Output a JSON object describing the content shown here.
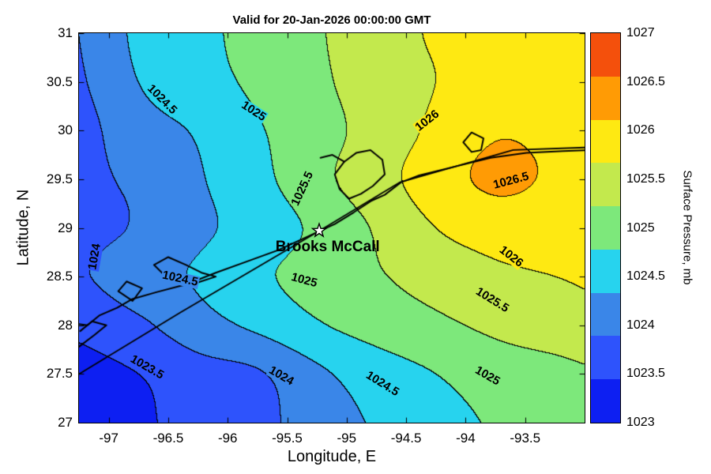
{
  "title": "Valid for 20-Jan-2026 00:00:00 GMT",
  "axes": {
    "xlabel": "Longitude, E",
    "ylabel": "Latitude, N",
    "lon_min": -97.25,
    "lon_max": -93.0,
    "lat_min": 27.0,
    "lat_max": 31.0,
    "x_ticks": [
      -97,
      -96.5,
      -96,
      -95.5,
      -95,
      -94.5,
      -94,
      -93.5
    ],
    "x_tick_labels": [
      "-97",
      "-96.5",
      "-96",
      "-95.5",
      "-95",
      "-94.5",
      "-94",
      "-93.5"
    ],
    "y_ticks": [
      27,
      27.5,
      28,
      28.5,
      29,
      29.5,
      30,
      30.5,
      31
    ],
    "y_tick_labels": [
      "27",
      "27.5",
      "28",
      "28.5",
      "29",
      "29.5",
      "30",
      "30.5",
      "31"
    ]
  },
  "colorbar": {
    "title": "Surface Pressure, mb",
    "tick_labels_top_to_bottom": [
      "1027",
      "1026.5",
      "1026",
      "1025.5",
      "1025",
      "1024.5",
      "1024",
      "1023.5",
      "1023"
    ],
    "segment_colors_bottom_to_top": [
      "#0d1ff2",
      "#2e53fc",
      "#3a86e8",
      "#27d3ee",
      "#7de87b",
      "#c3e94d",
      "#fee912",
      "#ff9b05",
      "#f4500c"
    ]
  },
  "chart_data": {
    "type": "filled-contour",
    "variable": "Surface Pressure",
    "units": "mb",
    "level_min": 1023,
    "level_step": 0.5,
    "levels": [
      1023.5,
      1024,
      1024.5,
      1025,
      1025.5,
      1026,
      1026.5
    ],
    "band_colors": [
      "#0d1ff2",
      "#2e53fc",
      "#3a86e8",
      "#27d3ee",
      "#7de87b",
      "#c3e94d",
      "#fee912",
      "#ff9b05"
    ],
    "grid": {
      "lons": [
        -97.25,
        -96.75,
        -96.25,
        -95.75,
        -95.25,
        -94.75,
        -94.25,
        -93.75,
        -93.25,
        -92.75
      ],
      "lats": [
        27.0,
        27.5,
        28.0,
        28.5,
        29.0,
        29.5,
        30.0,
        30.5,
        31.0
      ],
      "pressure": [
        [
          1023.15,
          1023.4,
          1023.7,
          1023.85,
          1024.25,
          1024.55,
          1024.8,
          1025.05,
          1025.15,
          1025.25
        ],
        [
          1023.35,
          1023.5,
          1023.8,
          1023.95,
          1024.4,
          1024.75,
          1025.0,
          1025.25,
          1025.35,
          1025.5
        ],
        [
          1023.6,
          1023.9,
          1024.3,
          1024.6,
          1024.95,
          1025.2,
          1025.4,
          1025.6,
          1025.75,
          1025.9
        ],
        [
          1023.95,
          1024.3,
          1024.55,
          1024.9,
          1025.2,
          1025.45,
          1025.7,
          1025.9,
          1026.0,
          1026.1
        ],
        [
          1023.85,
          1024.05,
          1024.4,
          1024.7,
          1025.1,
          1025.55,
          1026.0,
          1026.2,
          1026.25,
          1026.35
        ],
        [
          1023.9,
          1024.1,
          1024.45,
          1024.85,
          1025.35,
          1025.8,
          1026.25,
          1026.6,
          1026.45,
          1026.5
        ],
        [
          1023.85,
          1024.3,
          1024.55,
          1024.95,
          1025.3,
          1025.7,
          1026.1,
          1026.45,
          1026.4,
          1026.4
        ],
        [
          1023.95,
          1024.5,
          1024.8,
          1025.1,
          1025.4,
          1025.75,
          1026.0,
          1026.25,
          1026.3,
          1026.3
        ],
        [
          1024.0,
          1024.6,
          1024.85,
          1025.2,
          1025.45,
          1025.8,
          1026.05,
          1026.25,
          1026.3,
          1026.3
        ]
      ]
    },
    "contour_labels": [
      {
        "text": "1024.5",
        "lon": -96.55,
        "lat": 30.32,
        "rot": 45
      },
      {
        "text": "1025",
        "lon": -95.78,
        "lat": 30.2,
        "rot": 33
      },
      {
        "text": "1026",
        "lon": -94.32,
        "lat": 30.1,
        "rot": -38
      },
      {
        "text": "1026.5",
        "lon": -93.62,
        "lat": 29.48,
        "rot": -15
      },
      {
        "text": "1025.5",
        "lon": -95.37,
        "lat": 29.4,
        "rot": -65
      },
      {
        "text": "1024",
        "lon": -97.12,
        "lat": 28.7,
        "rot": -80
      },
      {
        "text": "1024.5",
        "lon": -96.4,
        "lat": 28.48,
        "rot": 12
      },
      {
        "text": "1025",
        "lon": -95.36,
        "lat": 28.46,
        "rot": 15
      },
      {
        "text": "1026",
        "lon": -93.62,
        "lat": 28.7,
        "rot": 38
      },
      {
        "text": "1025.5",
        "lon": -93.78,
        "lat": 28.26,
        "rot": 32
      },
      {
        "text": "1023.5",
        "lon": -96.68,
        "lat": 27.57,
        "rot": 30
      },
      {
        "text": "1024",
        "lon": -95.55,
        "lat": 27.48,
        "rot": 30
      },
      {
        "text": "1024.5",
        "lon": -94.7,
        "lat": 27.4,
        "rot": 32
      },
      {
        "text": "1025",
        "lon": -93.82,
        "lat": 27.48,
        "rot": 30
      }
    ],
    "station": {
      "name": "Brooks McCall",
      "lon": -95.23,
      "lat": 28.97,
      "label_lon": -95.16,
      "label_lat": 28.8,
      "marker": "star"
    },
    "coastlines": [
      [
        [
          -97.45,
          27.85
        ],
        [
          -97.32,
          27.92
        ],
        [
          -97.3,
          28.02
        ],
        [
          -97.18,
          28.0
        ],
        [
          -97.08,
          28.1
        ],
        [
          -96.93,
          28.18
        ],
        [
          -96.8,
          28.27
        ],
        [
          -96.6,
          28.34
        ],
        [
          -96.35,
          28.42
        ],
        [
          -96.1,
          28.54
        ],
        [
          -95.85,
          28.65
        ],
        [
          -95.58,
          28.77
        ],
        [
          -95.33,
          28.91
        ],
        [
          -95.1,
          29.04
        ],
        [
          -94.94,
          29.16
        ],
        [
          -94.79,
          29.28
        ],
        [
          -94.68,
          29.34
        ],
        [
          -94.54,
          29.47
        ],
        [
          -94.39,
          29.54
        ],
        [
          -94.09,
          29.63
        ],
        [
          -93.79,
          29.72
        ],
        [
          -93.49,
          29.77
        ],
        [
          -93.18,
          29.79
        ],
        [
          -92.9,
          29.8
        ]
      ],
      [
        [
          -94.98,
          29.3
        ],
        [
          -95.06,
          29.4
        ],
        [
          -95.1,
          29.55
        ],
        [
          -95.02,
          29.68
        ],
        [
          -94.92,
          29.77
        ],
        [
          -94.8,
          29.8
        ],
        [
          -94.7,
          29.7
        ],
        [
          -94.68,
          29.55
        ],
        [
          -94.78,
          29.43
        ],
        [
          -94.88,
          29.35
        ],
        [
          -94.98,
          29.3
        ]
      ],
      [
        [
          -95.02,
          29.68
        ],
        [
          -95.12,
          29.75
        ],
        [
          -95.22,
          29.72
        ]
      ],
      [
        [
          -96.4,
          28.42
        ],
        [
          -96.52,
          28.5
        ],
        [
          -96.62,
          28.62
        ],
        [
          -96.5,
          28.7
        ],
        [
          -96.35,
          28.62
        ],
        [
          -96.22,
          28.54
        ],
        [
          -96.1,
          28.5
        ],
        [
          -96.25,
          28.44
        ],
        [
          -96.4,
          28.42
        ]
      ],
      [
        [
          -96.8,
          28.25
        ],
        [
          -96.92,
          28.35
        ],
        [
          -96.85,
          28.45
        ],
        [
          -96.72,
          28.38
        ],
        [
          -96.78,
          28.28
        ],
        [
          -96.8,
          28.25
        ]
      ],
      [
        [
          -93.95,
          29.78
        ],
        [
          -94.02,
          29.88
        ],
        [
          -93.95,
          29.98
        ],
        [
          -93.85,
          29.92
        ],
        [
          -93.87,
          29.8
        ],
        [
          -93.95,
          29.78
        ]
      ],
      [
        [
          -97.25,
          27.78
        ],
        [
          -97.12,
          27.9
        ],
        [
          -97.02,
          28.0
        ],
        [
          -97.14,
          28.04
        ],
        [
          -97.24,
          27.94
        ]
      ]
    ],
    "ship_track": [
      [
        -97.45,
        27.35
      ],
      [
        -96.4,
        28.13
      ],
      [
        -95.23,
        28.97
      ],
      [
        -94.55,
        29.47
      ],
      [
        -93.6,
        29.8
      ],
      [
        -92.9,
        29.83
      ]
    ]
  }
}
